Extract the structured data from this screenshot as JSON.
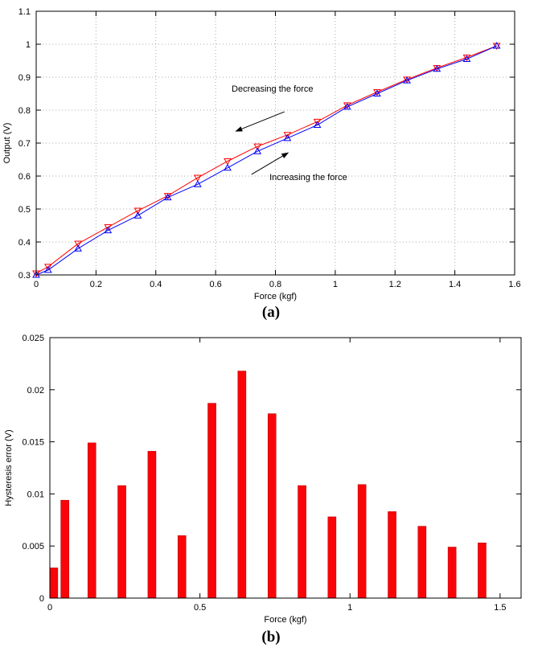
{
  "captions": {
    "a": "(a)",
    "b": "(b)"
  },
  "colors": {
    "decreasing_series": "#ff0000",
    "increasing_series": "#0000ff",
    "bar": "#f90509",
    "grid": "#ababab",
    "axis": "#000000",
    "background": "#ffffff"
  },
  "chart_data": [
    {
      "type": "line",
      "title": "",
      "xlabel": "Force (kgf)",
      "ylabel": "Output (V)",
      "xlim": [
        0,
        1.6
      ],
      "ylim": [
        0.3,
        1.1
      ],
      "xticks": [
        "0",
        "0.2",
        "0.4",
        "0.6",
        "0.8",
        "1",
        "1.2",
        "1.4",
        "1.6"
      ],
      "yticks": [
        "0.3",
        "0.4",
        "0.5",
        "0.6",
        "0.7",
        "0.8",
        "0.9",
        "1",
        "1.1"
      ],
      "grid": true,
      "legend": "none",
      "x": [
        0,
        0.04,
        0.14,
        0.24,
        0.34,
        0.44,
        0.54,
        0.64,
        0.74,
        0.84,
        0.94,
        1.04,
        1.14,
        1.24,
        1.34,
        1.44,
        1.54
      ],
      "series": [
        {
          "name": "Decreasing the force",
          "marker": "triangle-down",
          "color": "#ff0000",
          "values": [
            0.305,
            0.325,
            0.395,
            0.445,
            0.495,
            0.54,
            0.595,
            0.645,
            0.69,
            0.725,
            0.765,
            0.815,
            0.855,
            0.893,
            0.928,
            0.96,
            0.995
          ]
        },
        {
          "name": "Increasing the force",
          "marker": "triangle-up",
          "color": "#0000ff",
          "values": [
            0.3,
            0.315,
            0.38,
            0.435,
            0.48,
            0.535,
            0.575,
            0.625,
            0.675,
            0.715,
            0.755,
            0.81,
            0.85,
            0.89,
            0.925,
            0.955,
            0.995
          ]
        }
      ],
      "annotations": [
        {
          "text": "Decreasing the force",
          "x": 0.79,
          "y": 0.856
        },
        {
          "text": "Increasing the force",
          "x": 0.91,
          "y": 0.588
        }
      ],
      "arrows": [
        {
          "x1": 0.83,
          "y1": 0.795,
          "x2": 0.665,
          "y2": 0.735
        },
        {
          "x1": 0.72,
          "y1": 0.605,
          "x2": 0.845,
          "y2": 0.672
        }
      ]
    },
    {
      "type": "bar",
      "title": "",
      "xlabel": "Force (kgf)",
      "ylabel": "Hysteresis error (V)",
      "xlim": [
        0,
        1.57
      ],
      "ylim": [
        0,
        0.025
      ],
      "xticks": [
        "0",
        "0.5",
        "1",
        "1.5"
      ],
      "yticks": [
        "0",
        "0.005",
        "0.01",
        "0.015",
        "0.02",
        "0.025"
      ],
      "grid": false,
      "bar_color": "#f90509",
      "bar_width": 0.027,
      "x": [
        0.013,
        0.05,
        0.14,
        0.24,
        0.34,
        0.44,
        0.54,
        0.64,
        0.74,
        0.84,
        0.94,
        1.04,
        1.14,
        1.24,
        1.34,
        1.44
      ],
      "values": [
        0.0029,
        0.0094,
        0.0149,
        0.0108,
        0.0141,
        0.006,
        0.0187,
        0.0218,
        0.0177,
        0.0108,
        0.0078,
        0.0109,
        0.0083,
        0.0069,
        0.0049,
        0.0053
      ]
    }
  ]
}
